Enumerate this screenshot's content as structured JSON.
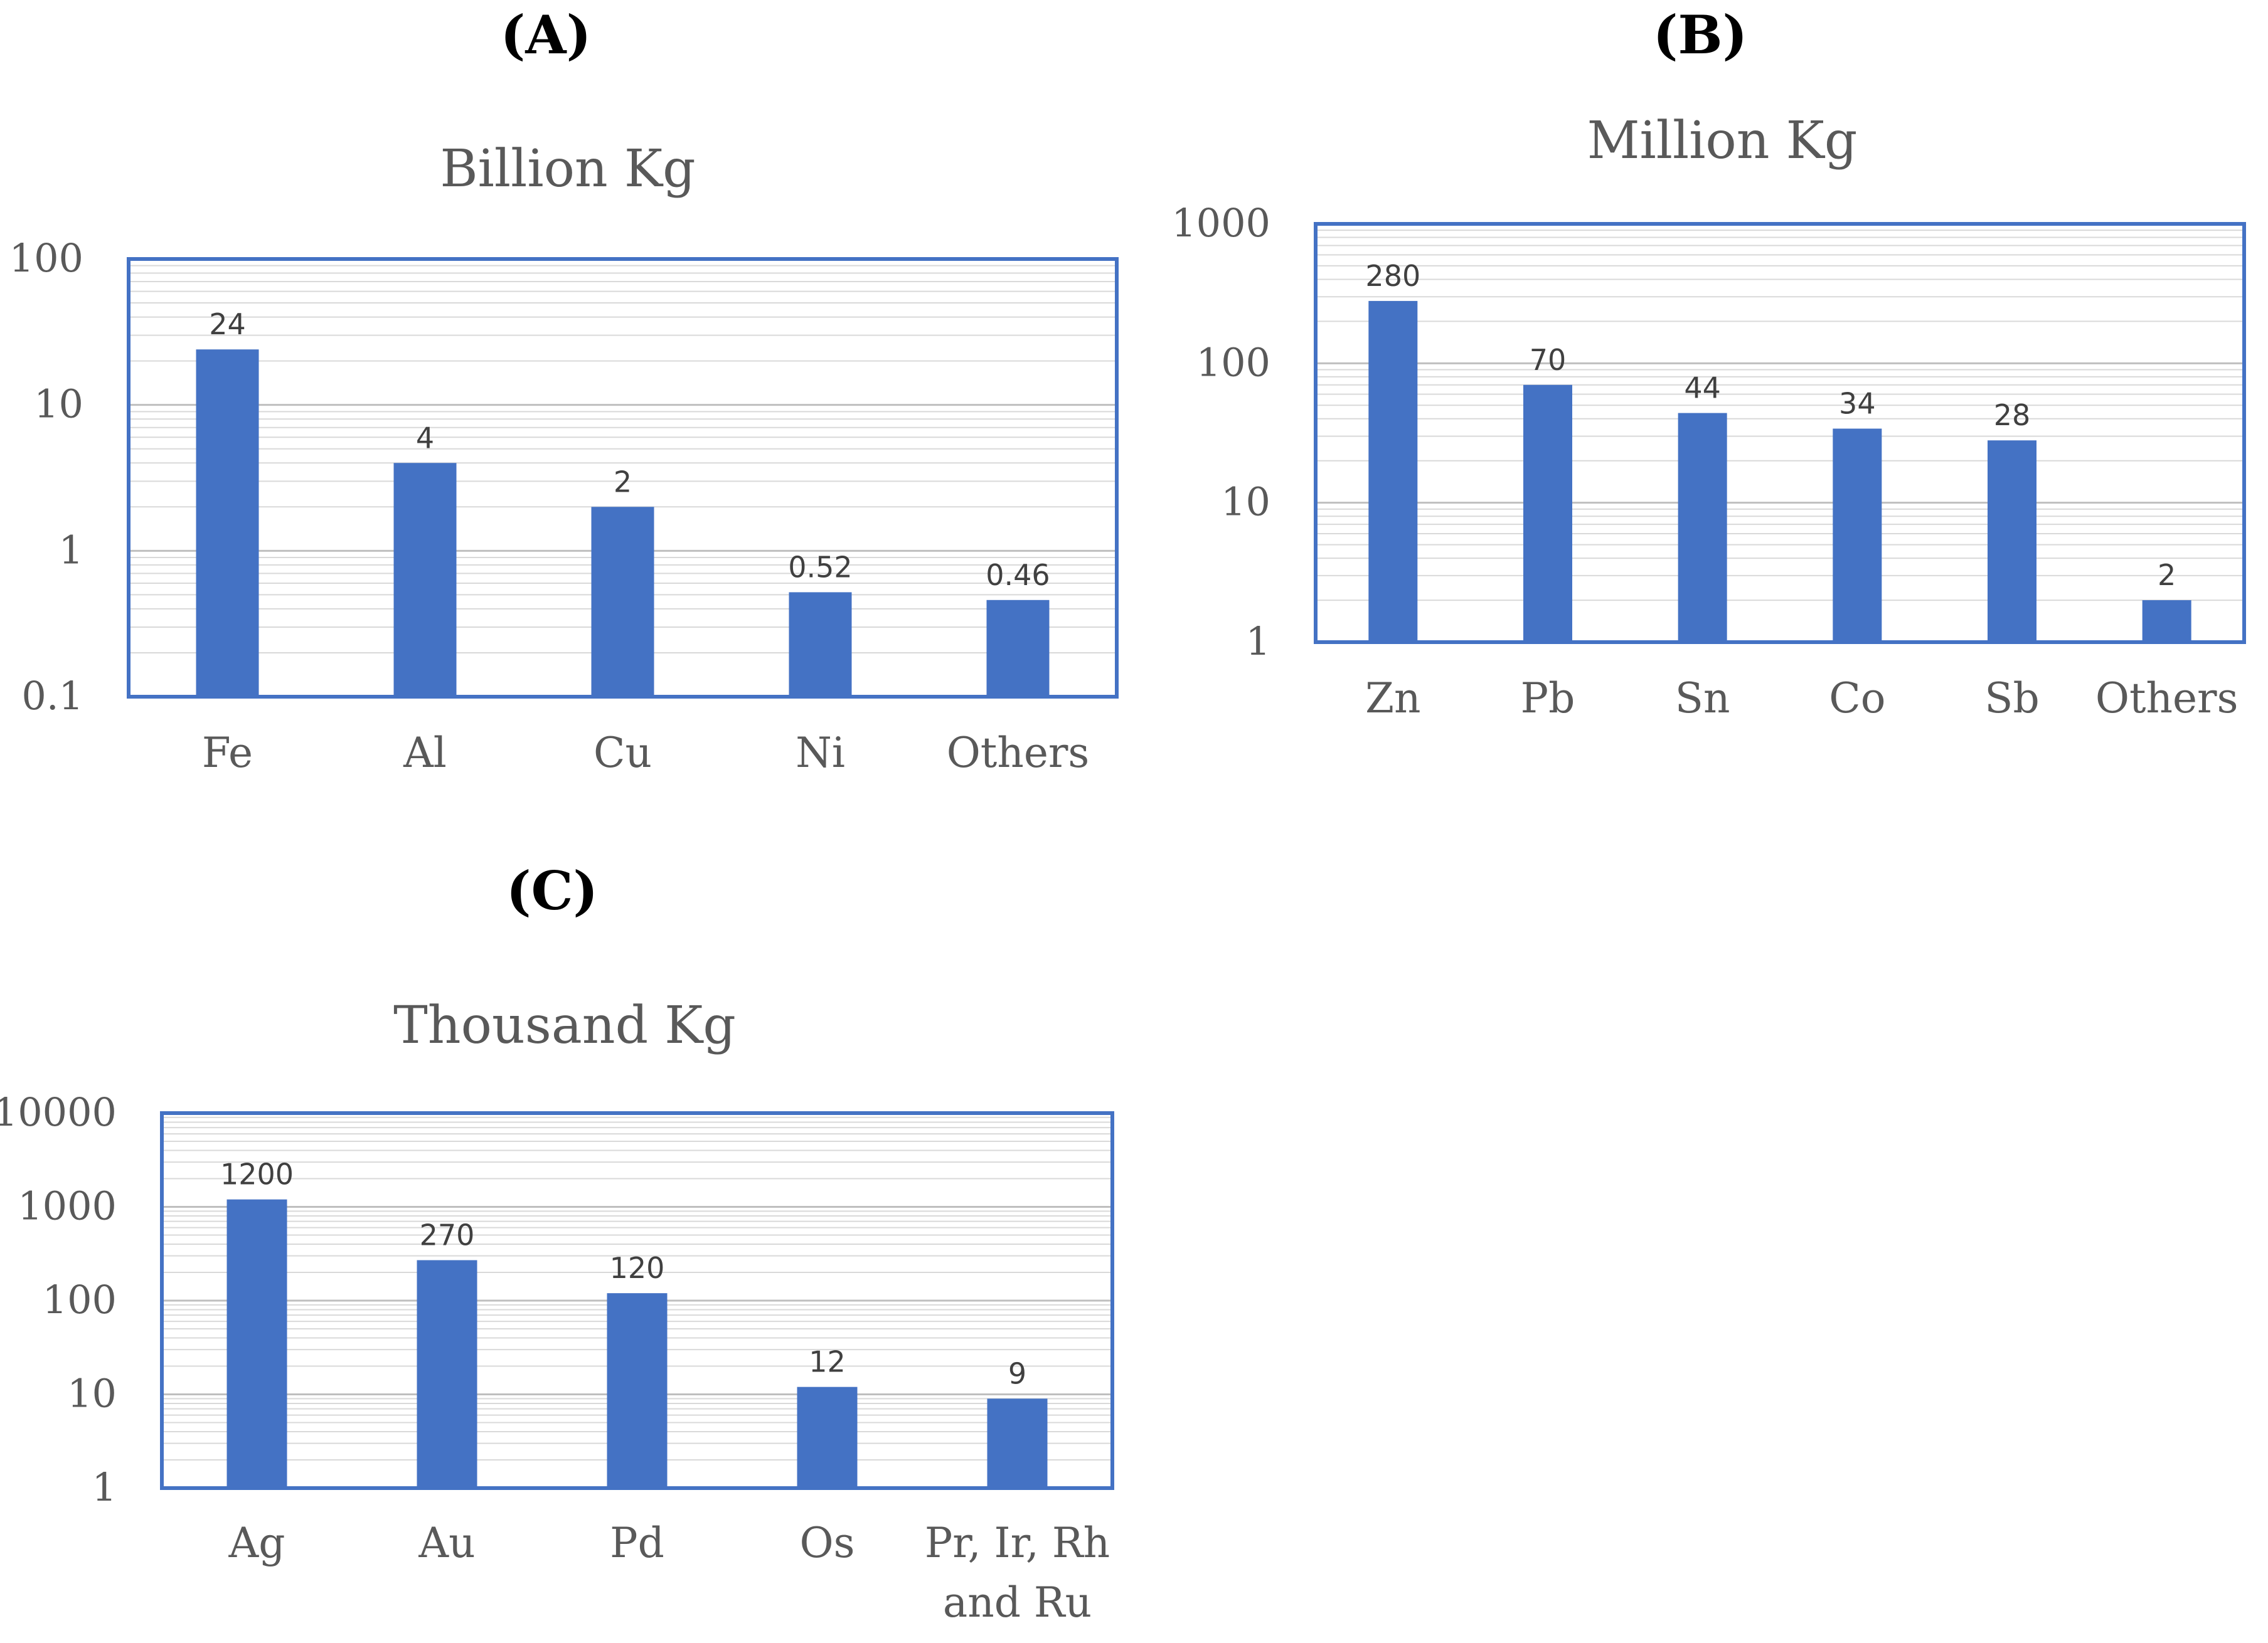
{
  "chart_data": [
    {
      "panel_label": "(A)",
      "type": "bar",
      "title": "Billion Kg",
      "y_scale": "log",
      "ylim": [
        0.1,
        100
      ],
      "y_ticks": [
        "0.1",
        "1",
        "10",
        "100"
      ],
      "categories": [
        [
          "Fe"
        ],
        [
          "Al"
        ],
        [
          "Cu"
        ],
        [
          "Ni"
        ],
        [
          "Others"
        ]
      ],
      "values": [
        24,
        4,
        2,
        0.52,
        0.46
      ],
      "data_labels": [
        "24",
        "4",
        "2",
        "0.52",
        "0.46"
      ],
      "grid": true,
      "bar_color": "#4472C4",
      "frame_color": "#4472C4"
    },
    {
      "panel_label": "(B)",
      "type": "bar",
      "title": "Million Kg",
      "y_scale": "log",
      "ylim": [
        1,
        1000
      ],
      "y_ticks": [
        "1",
        "10",
        "100",
        "1000"
      ],
      "categories": [
        [
          "Zn"
        ],
        [
          "Pb"
        ],
        [
          "Sn"
        ],
        [
          "Co"
        ],
        [
          "Sb"
        ],
        [
          "Others"
        ]
      ],
      "values": [
        280,
        70,
        44,
        34,
        28,
        2
      ],
      "data_labels": [
        "280",
        "70",
        "44",
        "34",
        "28",
        "2"
      ],
      "grid": true,
      "bar_color": "#4472C4",
      "frame_color": "#4472C4"
    },
    {
      "panel_label": "(C)",
      "type": "bar",
      "title": "Thousand  Kg",
      "y_scale": "log",
      "ylim": [
        1,
        10000
      ],
      "y_ticks": [
        "1",
        "10",
        "100",
        "1000",
        "10000"
      ],
      "categories": [
        [
          "Ag"
        ],
        [
          "Au"
        ],
        [
          "Pd"
        ],
        [
          "Os"
        ],
        [
          "Pr, Ir, Rh",
          "and Ru"
        ]
      ],
      "values": [
        1200,
        270,
        120,
        12,
        9
      ],
      "data_labels": [
        "1200",
        "270",
        "120",
        "12",
        "9"
      ],
      "grid": true,
      "bar_color": "#4472C4",
      "frame_color": "#4472C4"
    }
  ]
}
